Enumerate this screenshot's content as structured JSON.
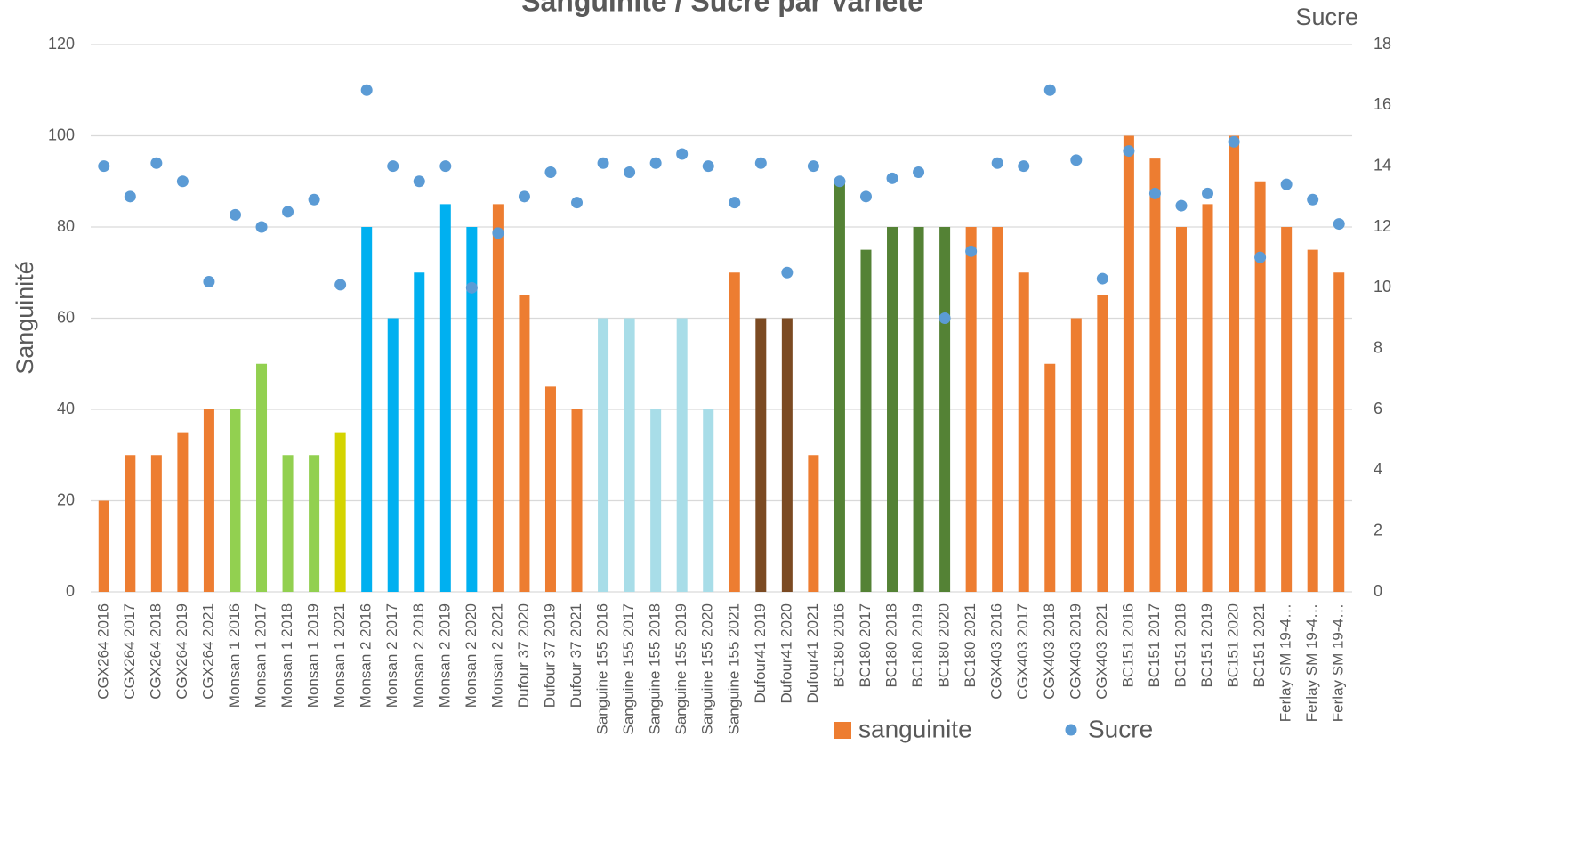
{
  "chart_data": {
    "type": "bar+scatter",
    "title": "Sanguinite / Sucre par Variete",
    "y_label": "Sanguinité",
    "y2_label": "Sucre",
    "categories": [
      "CGX264 2016",
      "CGX264 2017",
      "CGX264 2018",
      "CGX264 2019",
      "CGX264 2021",
      "Monsan 1 2016",
      "Monsan 1 2017",
      "Monsan 1 2018",
      "Monsan 1 2019",
      "Monsan 1 2021",
      "Monsan 2 2016",
      "Monsan 2 2017",
      "Monsan 2 2018",
      "Monsan 2 2019",
      "Monsan 2 2020",
      "Monsan 2 2021",
      "Dufour 37 2020",
      "Dufour 37 2019",
      "Dufour 37 2021",
      "Sanguine 155 2016",
      "Sanguine 155 2017",
      "Sanguine 155 2018",
      "Sanguine 155 2019",
      "Sanguine 155 2020",
      "Sanguine 155 2021",
      "Dufour41 2019",
      "Dufour41 2020",
      "Dufour41 2021",
      "BC180 2016",
      "BC180 2017",
      "BC180 2018",
      "BC180 2019",
      "BC180 2020",
      "BC180 2021",
      "CGX403 2016",
      "CGX403 2017",
      "CGX403 2018",
      "CGX403 2019",
      "CGX403 2021",
      "BC151 2016",
      "BC151 2017",
      "BC151 2018",
      "BC151 2019",
      "BC151 2020",
      "BC151 2021",
      "Ferlay SM 19-4…",
      "Ferlay SM 19-4…",
      "Ferlay SM 19-4…"
    ],
    "series": [
      {
        "name": "sanguinite",
        "type": "bar",
        "color": "#ed7d31",
        "colors": [
          "#ed7d31",
          "#ed7d31",
          "#ed7d31",
          "#ed7d31",
          "#ed7d31",
          "#92d050",
          "#92d050",
          "#92d050",
          "#92d050",
          "#d4d400",
          "#00b0f0",
          "#00b0f0",
          "#00b0f0",
          "#00b0f0",
          "#00b0f0",
          "#ed7d31",
          "#ed7d31",
          "#ed7d31",
          "#ed7d31",
          "#a8dde8",
          "#a8dde8",
          "#a8dde8",
          "#a8dde8",
          "#a8dde8",
          "#ed7d31",
          "#7b4a22",
          "#7b4a22",
          "#ed7d31",
          "#548235",
          "#548235",
          "#548235",
          "#548235",
          "#548235",
          "#ed7d31",
          "#ed7d31",
          "#ed7d31",
          "#ed7d31",
          "#ed7d31",
          "#ed7d31",
          "#ed7d31",
          "#ed7d31",
          "#ed7d31",
          "#ed7d31",
          "#ed7d31",
          "#ed7d31",
          "#ed7d31",
          "#ed7d31",
          "#ed7d31"
        ],
        "values": [
          20,
          30,
          30,
          35,
          40,
          40,
          50,
          30,
          30,
          35,
          80,
          60,
          70,
          85,
          80,
          85,
          65,
          45,
          40,
          60,
          60,
          40,
          60,
          40,
          70,
          60,
          60,
          30,
          90,
          75,
          80,
          80,
          80,
          80,
          80,
          70,
          50,
          60,
          65,
          100,
          95,
          80,
          85,
          100,
          90,
          80,
          75,
          70
        ]
      },
      {
        "name": "Sucre",
        "type": "scatter",
        "axis": "y2",
        "color": "#5b9bd5",
        "values": [
          14.0,
          13.0,
          14.1,
          13.5,
          10.2,
          12.4,
          12.0,
          12.5,
          12.9,
          10.1,
          16.5,
          14.0,
          13.5,
          14.0,
          10.0,
          11.8,
          13.0,
          13.8,
          12.8,
          14.1,
          13.8,
          14.1,
          14.4,
          14.0,
          12.8,
          14.1,
          10.5,
          14.0,
          13.5,
          13.0,
          13.6,
          13.8,
          9.0,
          11.2,
          14.1,
          14.0,
          16.5,
          14.2,
          10.3,
          14.5,
          13.1,
          12.7,
          13.1,
          14.8,
          11.0,
          13.4,
          12.9,
          12.1
        ]
      }
    ],
    "ylim": [
      0,
      120
    ],
    "yticks": [
      0,
      20,
      40,
      60,
      80,
      100,
      120
    ],
    "y2lim": [
      0,
      18
    ],
    "y2ticks": [
      0,
      2,
      4,
      6,
      8,
      10,
      12,
      14,
      16,
      18
    ],
    "grid": true,
    "legend": "bottom"
  }
}
